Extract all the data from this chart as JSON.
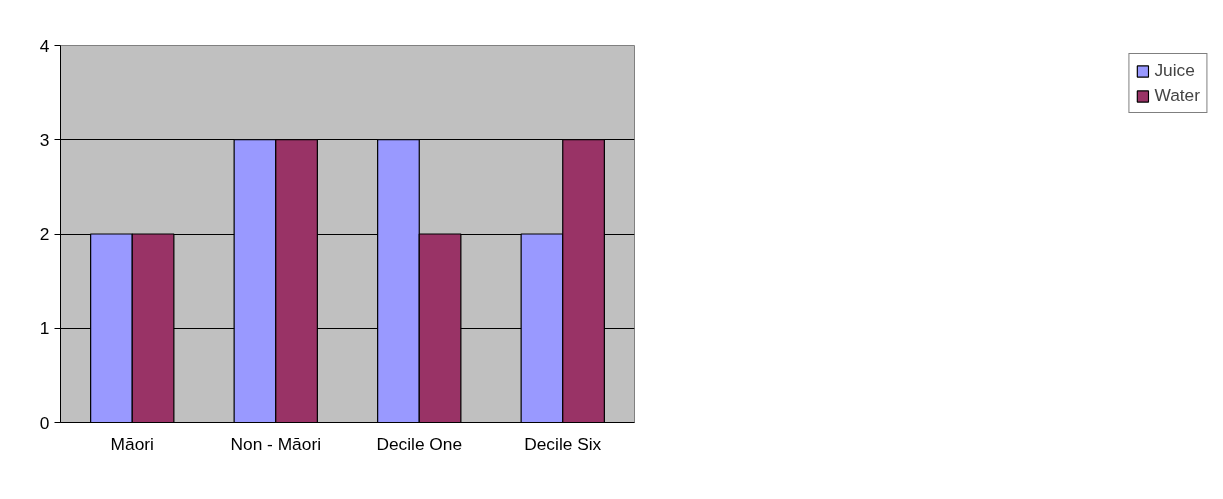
{
  "chart_data": {
    "type": "bar",
    "categories": [
      "Māori",
      "Non - Māori",
      "Decile One",
      "Decile Six"
    ],
    "series": [
      {
        "name": "Juice",
        "color": "#9999ff",
        "values": [
          2,
          3,
          3,
          2
        ]
      },
      {
        "name": "Water",
        "color": "#993366",
        "values": [
          2,
          3,
          2,
          3
        ]
      }
    ],
    "ylim": [
      0,
      4
    ],
    "yticks": [
      0,
      1,
      2,
      3,
      4
    ],
    "grid": "y",
    "legend": "right"
  }
}
